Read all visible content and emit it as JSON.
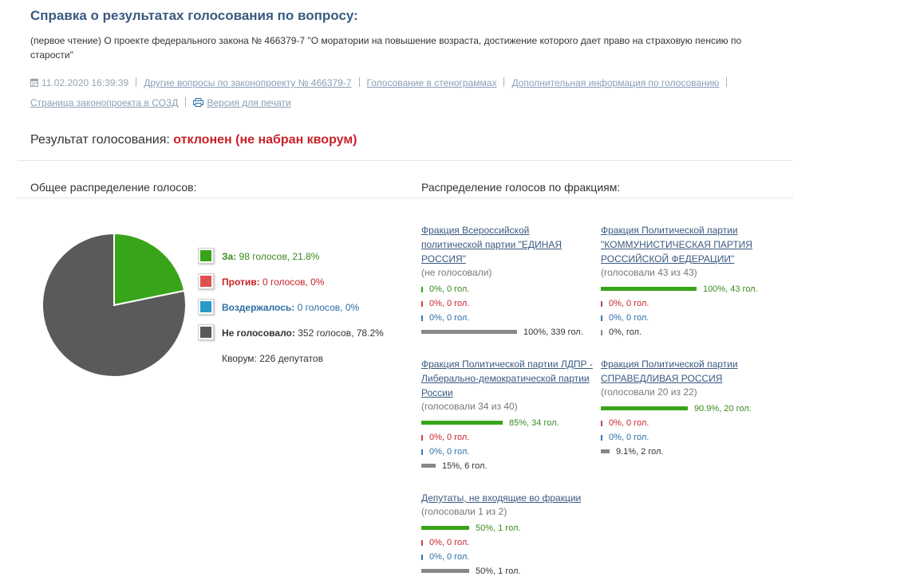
{
  "header": {
    "title": "Справка о результатах голосования по вопросу:",
    "description": "(первое чтение) О проекте федерального закона № 466379-7 \"О моратории на повышение возраста, достижение которого дает право на страховую пенсию по старости\""
  },
  "meta": {
    "datetime": "11.02.2020 16:39:39",
    "links": [
      "Другие вопросы по законопроекту № 466379-7",
      "Голосование в стенограммах",
      "Дополнительная информация по голосованию",
      "Страница законопроекта в СОЗД",
      "Версия для печати"
    ]
  },
  "result": {
    "label": "Результат голосования:",
    "status": "отклонен (не набран кворум)"
  },
  "sections": {
    "overall": "Общее распределение голосов:",
    "factions": "Распределение голосов по фракциям:"
  },
  "legend": [
    {
      "key": "За:",
      "value": "98 голосов, 21.8%",
      "color": "#38a41a"
    },
    {
      "key": "Против:",
      "value": "0 голосов, 0%",
      "color": "#e05050"
    },
    {
      "key": "Воздержалось:",
      "value": "0 голосов, 0%",
      "color": "#2a9ac8"
    },
    {
      "key": "Не голосовало:",
      "value": "352 голосов, 78.2%",
      "color": "#5a5a5a"
    }
  ],
  "quorum": "Кворум: 226 депутатов",
  "chart_data": {
    "type": "pie",
    "labels": [
      "За",
      "Против",
      "Воздержалось",
      "Не голосовало"
    ],
    "values": [
      98,
      0,
      0,
      352
    ],
    "percent": [
      21.8,
      0,
      0,
      78.2
    ],
    "colors": [
      "#38a41a",
      "#e05050",
      "#2a9ac8",
      "#5a5a5a"
    ]
  },
  "factions": [
    {
      "name": "Фракция Всероссийской политической партии \"ЕДИНАЯ РОССИЯ\"",
      "voted": "(не голосовали)",
      "rows": [
        {
          "kind": "for",
          "fraction": 0.0,
          "text": "0%, 0 гол."
        },
        {
          "kind": "against",
          "fraction": 0.0,
          "text": "0%, 0 гол."
        },
        {
          "kind": "abstain",
          "fraction": 0.0,
          "text": "0%, 0 гол."
        },
        {
          "kind": "novote",
          "fraction": 1.0,
          "text": "100%, 339 гол."
        }
      ]
    },
    {
      "name": "Фракция Политической партии \"КОММУНИСТИЧЕСКАЯ ПАРТИЯ РОССИЙСКОЙ ФЕДЕРАЦИИ\"",
      "voted": "(голосовали 43 из 43)",
      "rows": [
        {
          "kind": "for",
          "fraction": 1.0,
          "text": "100%, 43 гол."
        },
        {
          "kind": "against",
          "fraction": 0.0,
          "text": "0%, 0 гол."
        },
        {
          "kind": "abstain",
          "fraction": 0.0,
          "text": "0%, 0 гол."
        },
        {
          "kind": "novote",
          "fraction": 0.0,
          "text": "0%, гол."
        }
      ]
    },
    {
      "name": "Фракция Политической партии ЛДПР - Либерально-демократической партии России",
      "voted": "(голосовали 34 из 40)",
      "rows": [
        {
          "kind": "for",
          "fraction": 0.85,
          "text": "85%, 34 гол."
        },
        {
          "kind": "against",
          "fraction": 0.0,
          "text": "0%, 0 гол."
        },
        {
          "kind": "abstain",
          "fraction": 0.0,
          "text": "0%, 0 гол."
        },
        {
          "kind": "novote",
          "fraction": 0.15,
          "text": "15%, 6 гол."
        }
      ]
    },
    {
      "name": "Фракция Политической партии СПРАВЕДЛИВАЯ РОССИЯ",
      "voted": "(голосовали 20 из 22)",
      "rows": [
        {
          "kind": "for",
          "fraction": 0.909,
          "text": "90.9%, 20 гол."
        },
        {
          "kind": "against",
          "fraction": 0.0,
          "text": "0%, 0 гол."
        },
        {
          "kind": "abstain",
          "fraction": 0.0,
          "text": "0%, 0 гол."
        },
        {
          "kind": "novote",
          "fraction": 0.091,
          "text": "9.1%, 2 гол."
        }
      ]
    },
    {
      "name": "Депутаты, не входящие во фракции",
      "voted": "(голосовали 1 из 2)",
      "rows": [
        {
          "kind": "for",
          "fraction": 0.5,
          "text": "50%, 1 гол."
        },
        {
          "kind": "against",
          "fraction": 0.0,
          "text": "0%, 0 гол."
        },
        {
          "kind": "abstain",
          "fraction": 0.0,
          "text": "0%, 0 гол."
        },
        {
          "kind": "novote",
          "fraction": 0.5,
          "text": "50%, 1 гол."
        }
      ]
    }
  ]
}
